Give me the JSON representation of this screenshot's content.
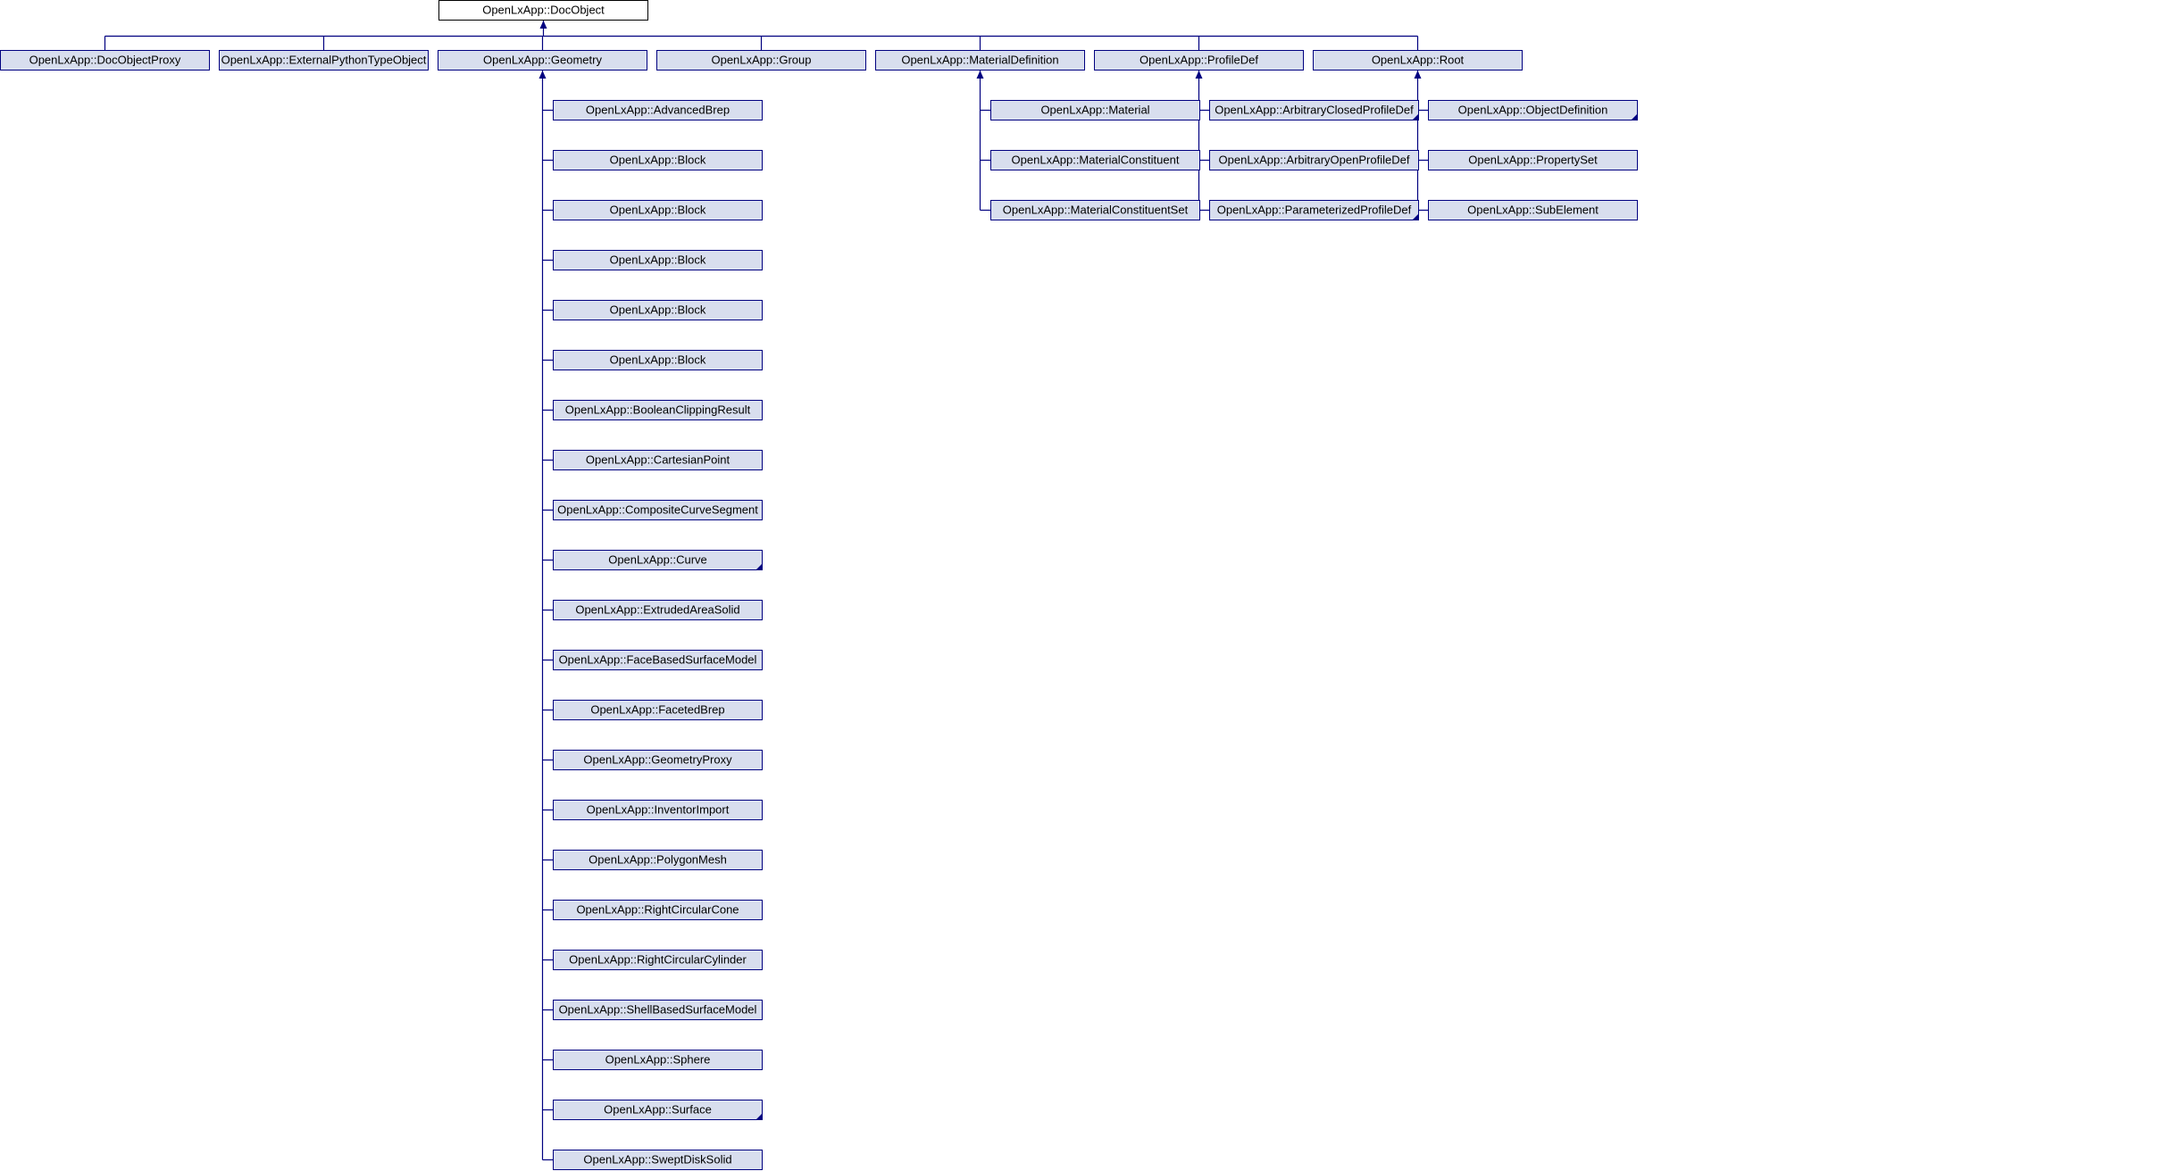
{
  "colors": {
    "node_fill": "#d8deee",
    "root_fill": "#ffffff",
    "node_border": "#000080",
    "edge": "#000080",
    "text": "#000000",
    "corner_mark": "#000080"
  },
  "root": {
    "label": "OpenLxApp::DocObject"
  },
  "level1": [
    {
      "label": "OpenLxApp::DocObjectProxy",
      "children": []
    },
    {
      "label": "OpenLxApp::ExternalPythonTypeObject",
      "children": []
    },
    {
      "label": "OpenLxApp::Geometry",
      "children": [
        {
          "label": "OpenLxApp::AdvancedBrep"
        },
        {
          "label": "OpenLxApp::Block"
        },
        {
          "label": "OpenLxApp::Block"
        },
        {
          "label": "OpenLxApp::Block"
        },
        {
          "label": "OpenLxApp::Block"
        },
        {
          "label": "OpenLxApp::Block"
        },
        {
          "label": "OpenLxApp::BooleanClippingResult"
        },
        {
          "label": "OpenLxApp::CartesianPoint"
        },
        {
          "label": "OpenLxApp::CompositeCurveSegment"
        },
        {
          "label": "OpenLxApp::Curve",
          "has_more": true
        },
        {
          "label": "OpenLxApp::ExtrudedAreaSolid"
        },
        {
          "label": "OpenLxApp::FaceBasedSurfaceModel"
        },
        {
          "label": "OpenLxApp::FacetedBrep"
        },
        {
          "label": "OpenLxApp::GeometryProxy"
        },
        {
          "label": "OpenLxApp::InventorImport"
        },
        {
          "label": "OpenLxApp::PolygonMesh"
        },
        {
          "label": "OpenLxApp::RightCircularCone"
        },
        {
          "label": "OpenLxApp::RightCircularCylinder"
        },
        {
          "label": "OpenLxApp::ShellBasedSurfaceModel"
        },
        {
          "label": "OpenLxApp::Sphere"
        },
        {
          "label": "OpenLxApp::Surface",
          "has_more": true
        },
        {
          "label": "OpenLxApp::SweptDiskSolid"
        }
      ]
    },
    {
      "label": "OpenLxApp::Group",
      "children": []
    },
    {
      "label": "OpenLxApp::MaterialDefinition",
      "children": [
        {
          "label": "OpenLxApp::Material"
        },
        {
          "label": "OpenLxApp::MaterialConstituent"
        },
        {
          "label": "OpenLxApp::MaterialConstituentSet"
        }
      ]
    },
    {
      "label": "OpenLxApp::ProfileDef",
      "children": [
        {
          "label": "OpenLxApp::ArbitraryClosedProfileDef",
          "has_more": true
        },
        {
          "label": "OpenLxApp::ArbitraryOpenProfileDef"
        },
        {
          "label": "OpenLxApp::ParameterizedProfileDef",
          "has_more": true
        }
      ]
    },
    {
      "label": "OpenLxApp::Root",
      "children": [
        {
          "label": "OpenLxApp::ObjectDefinition",
          "has_more": true
        },
        {
          "label": "OpenLxApp::PropertySet"
        },
        {
          "label": "OpenLxApp::SubElement"
        }
      ]
    }
  ]
}
